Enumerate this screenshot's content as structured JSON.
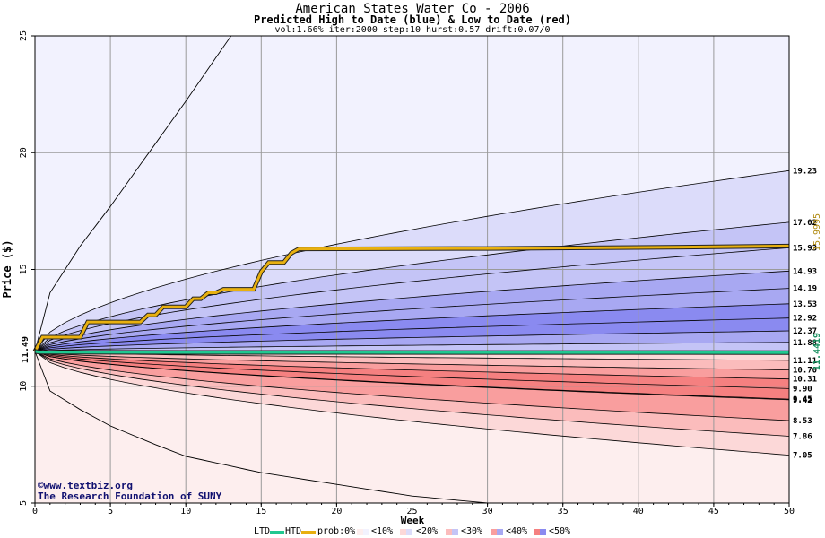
{
  "header": {
    "title": "American States Water Co - 2006",
    "subtitle": "Predicted High to Date (blue) &  Low to Date (red)",
    "params": "vol:1.66% iter:2000 step:10 hurst:0.57 drift:0.07/0"
  },
  "credits": {
    "site": "©www.textbiz.org",
    "org": "The Research Foundation of SUNY"
  },
  "legend": {
    "ltd": "LTD",
    "htd": "HTD",
    "prob": "prob:0%",
    "p10": "<10%",
    "p20": "<20%",
    "p30": "<30%",
    "p40": "<40%",
    "p50": "<50%"
  },
  "chart_data": {
    "type": "area",
    "title": "American States Water Co - 2006",
    "xlabel": "Week",
    "ylabel": "Price ($)",
    "xlim": [
      0,
      50
    ],
    "ylim": [
      5,
      25
    ],
    "x_ticks": [
      0,
      5,
      10,
      15,
      20,
      25,
      30,
      35,
      40,
      45,
      50
    ],
    "y_ticks": [
      5,
      10,
      15,
      20,
      25
    ],
    "grid": true,
    "start_price": 11.49,
    "start_label": "11.49",
    "htd_value_label": "15.9995",
    "ltd_value_label": "11.4419",
    "colors": {
      "htd": "#e8b010",
      "ltd": "#20c890",
      "blue_bands": [
        "#f2f2fe",
        "#dcdcfa",
        "#c4c4f6",
        "#a8a8f2",
        "#8a8af0"
      ],
      "red_bands": [
        "#fdeeee",
        "#fcd8d8",
        "#fbbcbc",
        "#f99e9e",
        "#f58080"
      ]
    },
    "outer_curves": {
      "upper_weeks": [
        0,
        1,
        3,
        5,
        8,
        10,
        13
      ],
      "upper_values": [
        11.49,
        14.0,
        16.0,
        17.7,
        20.4,
        22.2,
        25.0
      ],
      "lower_weeks": [
        0,
        1,
        3,
        5,
        8,
        10,
        15,
        20,
        25,
        30
      ],
      "lower_values": [
        11.49,
        9.8,
        9.0,
        8.3,
        7.5,
        7.0,
        6.3,
        5.8,
        5.3,
        5.0
      ]
    },
    "band_end_values": {
      "upper": [
        19.23,
        17.02,
        15.93,
        14.93,
        14.19,
        13.53,
        12.92,
        12.37,
        11.88
      ],
      "lower": [
        11.11,
        10.7,
        10.31,
        9.9,
        9.45,
        9.42,
        8.53,
        7.86,
        7.05
      ]
    },
    "band_end_labels": {
      "upper": [
        "19.23",
        "17.02",
        "15.93",
        "14.93",
        "14.19",
        "13.53",
        "12.92",
        "12.37",
        "11.88"
      ],
      "lower": [
        "11.11",
        "10.70",
        "10.31",
        "9.90",
        "9.45",
        "9.42",
        "8.53",
        "7.86",
        "7.05"
      ]
    },
    "series": [
      {
        "name": "HTD",
        "x": [
          0,
          0.5,
          3,
          3.5,
          7,
          7.5,
          8,
          8.5,
          10,
          10.5,
          11,
          11.5,
          12,
          12.5,
          14.5,
          15,
          15.5,
          16.5,
          17,
          17.5,
          30,
          42,
          50
        ],
        "y": [
          11.49,
          12.1,
          12.1,
          12.75,
          12.75,
          13.05,
          13.05,
          13.4,
          13.4,
          13.75,
          13.75,
          14.0,
          14.0,
          14.15,
          14.15,
          14.9,
          15.3,
          15.3,
          15.7,
          15.88,
          15.9,
          15.95,
          16.0
        ]
      },
      {
        "name": "LTD",
        "x": [
          0,
          0.3,
          10,
          50
        ],
        "y": [
          11.49,
          11.46,
          11.45,
          11.44
        ]
      }
    ]
  }
}
